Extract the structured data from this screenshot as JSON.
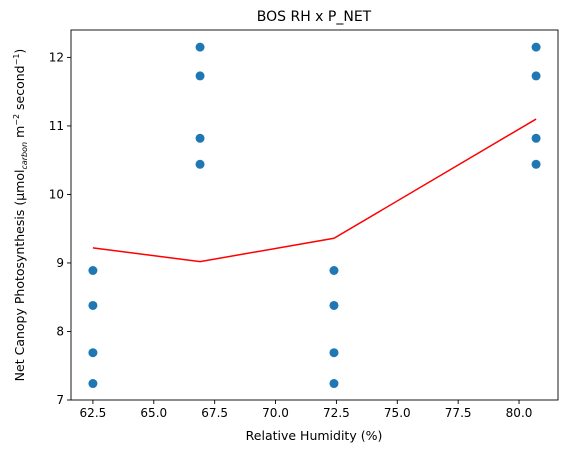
{
  "chart_data": {
    "type": "scatter",
    "title": "BOS RH x P_NET",
    "xlabel": "Relative Humidity (%)",
    "ylabel_parts": {
      "prefix": "Net Canopy Photosynthesis (µmol",
      "subscript": "carbon",
      "middle1": " m",
      "superscript1": "−2",
      "middle2": " second",
      "superscript2": "−1",
      "suffix": ")"
    },
    "xlim": [
      61.6,
      81.6
    ],
    "ylim": [
      7.0,
      12.4
    ],
    "x_ticks": [
      62.5,
      65.0,
      67.5,
      70.0,
      72.5,
      75.0,
      77.5,
      80.0
    ],
    "x_tick_labels": [
      "62.5",
      "65.0",
      "67.5",
      "70.0",
      "72.5",
      "75.0",
      "77.5",
      "80.0"
    ],
    "y_ticks": [
      7,
      8,
      9,
      10,
      11,
      12
    ],
    "y_tick_labels": [
      "7",
      "8",
      "9",
      "10",
      "11",
      "12"
    ],
    "colors": {
      "points": "#1f77b4",
      "line": "#ff0000"
    },
    "points": [
      {
        "x": 62.5,
        "y": 8.89
      },
      {
        "x": 62.5,
        "y": 8.38
      },
      {
        "x": 62.5,
        "y": 7.69
      },
      {
        "x": 62.5,
        "y": 7.24
      },
      {
        "x": 66.9,
        "y": 12.15
      },
      {
        "x": 66.9,
        "y": 11.73
      },
      {
        "x": 66.9,
        "y": 10.82
      },
      {
        "x": 66.9,
        "y": 10.44
      },
      {
        "x": 72.4,
        "y": 8.89
      },
      {
        "x": 72.4,
        "y": 8.38
      },
      {
        "x": 72.4,
        "y": 7.69
      },
      {
        "x": 72.4,
        "y": 7.24
      },
      {
        "x": 80.7,
        "y": 12.15
      },
      {
        "x": 80.7,
        "y": 11.73
      },
      {
        "x": 80.7,
        "y": 10.82
      },
      {
        "x": 80.7,
        "y": 10.44
      }
    ],
    "line": {
      "x": [
        62.5,
        66.9,
        72.4,
        80.7
      ],
      "y": [
        9.22,
        9.02,
        9.36,
        11.1
      ]
    }
  }
}
